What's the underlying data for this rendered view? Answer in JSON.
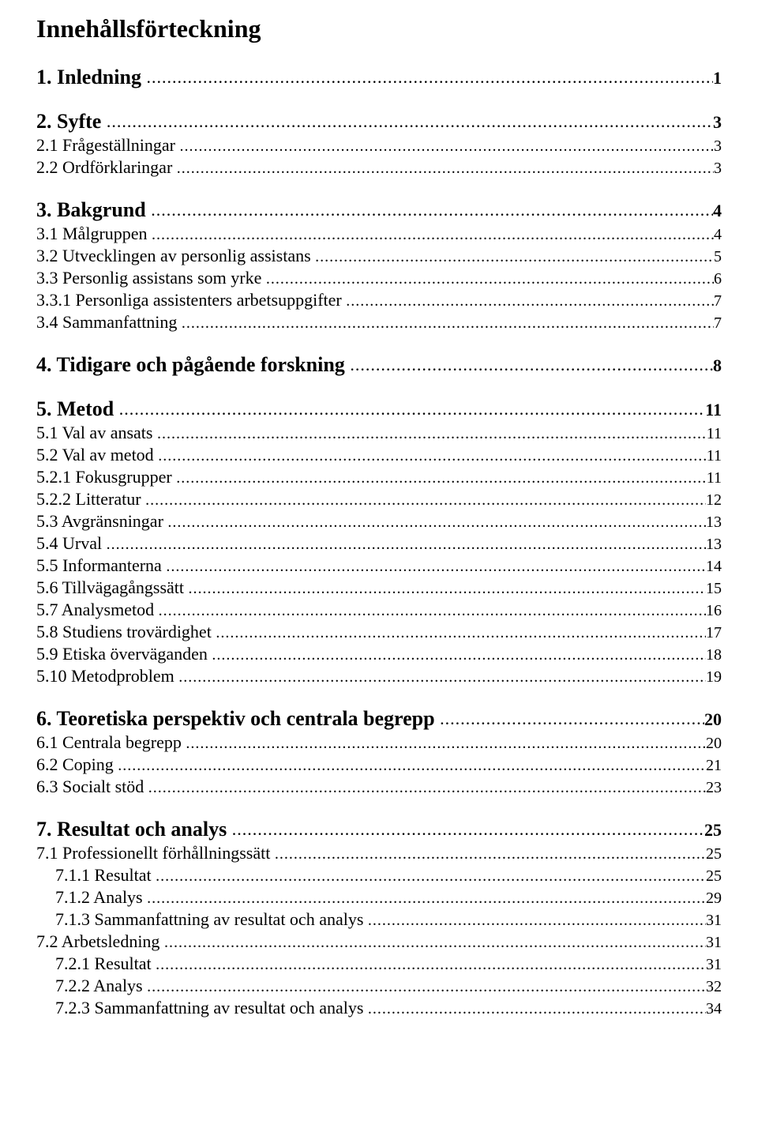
{
  "title": "Innehållsförteckning",
  "dot_fill": "........................................................................................................................................................................................................................................................................",
  "entries": [
    {
      "level": 1,
      "label": "1. Inledning",
      "page": "1"
    },
    {
      "level": 1,
      "label": "2. Syfte",
      "page": "3"
    },
    {
      "level": 2,
      "label": "2.1 Frågeställningar",
      "page": "3"
    },
    {
      "level": 2,
      "label": "2.2 Ordförklaringar",
      "page": "3"
    },
    {
      "level": 1,
      "label": "3. Bakgrund",
      "page": "4"
    },
    {
      "level": 2,
      "label": "3.1 Målgruppen",
      "page": "4"
    },
    {
      "level": 2,
      "label": "3.2 Utvecklingen av personlig assistans",
      "page": "5"
    },
    {
      "level": 2,
      "label": "3.3 Personlig assistans som yrke",
      "page": "6"
    },
    {
      "level": 2,
      "label": "3.3.1 Personliga assistenters arbetsuppgifter",
      "page": "7"
    },
    {
      "level": 2,
      "label": "3.4 Sammanfattning",
      "page": "7"
    },
    {
      "level": 1,
      "label": "4. Tidigare och pågående forskning",
      "page": "8"
    },
    {
      "level": 1,
      "label": "5. Metod",
      "page": "11"
    },
    {
      "level": 2,
      "label": "5.1 Val av ansats",
      "page": "11"
    },
    {
      "level": 2,
      "label": "5.2 Val av metod",
      "page": "11"
    },
    {
      "level": 2,
      "label": "5.2.1 Fokusgrupper",
      "page": "11"
    },
    {
      "level": 2,
      "label": "5.2.2 Litteratur",
      "page": "12"
    },
    {
      "level": 2,
      "label": "5.3 Avgränsningar",
      "page": "13"
    },
    {
      "level": 2,
      "label": "5.4 Urval",
      "page": "13"
    },
    {
      "level": 2,
      "label": "5.5 Informanterna",
      "page": "14"
    },
    {
      "level": 2,
      "label": "5.6 Tillvägagångssätt",
      "page": "15"
    },
    {
      "level": 2,
      "label": "5.7 Analysmetod",
      "page": "16"
    },
    {
      "level": 2,
      "label": "5.8 Studiens trovärdighet",
      "page": "17"
    },
    {
      "level": 2,
      "label": "5.9 Etiska överväganden",
      "page": "18"
    },
    {
      "level": 2,
      "label": "5.10 Metodproblem",
      "page": "19"
    },
    {
      "level": 1,
      "label": "6. Teoretiska perspektiv och centrala begrepp",
      "page": "20"
    },
    {
      "level": 2,
      "label": "6.1 Centrala begrepp",
      "page": "20"
    },
    {
      "level": 2,
      "label": "6.2 Coping",
      "page": "21"
    },
    {
      "level": 2,
      "label": "6.3 Socialt stöd",
      "page": "23"
    },
    {
      "level": 1,
      "label": "7. Resultat och analys",
      "page": "25"
    },
    {
      "level": 2,
      "label": "7.1 Professionellt förhållningssätt",
      "page": "25"
    },
    {
      "level": 3,
      "label": "7.1.1 Resultat",
      "page": "25"
    },
    {
      "level": 3,
      "label": "7.1.2 Analys",
      "page": "29"
    },
    {
      "level": 3,
      "label": "7.1.3 Sammanfattning av resultat och analys",
      "page": "31"
    },
    {
      "level": 2,
      "label": "7.2 Arbetsledning",
      "page": "31"
    },
    {
      "level": 3,
      "label": "7.2.1 Resultat",
      "page": "31"
    },
    {
      "level": 3,
      "label": "7.2.2 Analys",
      "page": "32"
    },
    {
      "level": 3,
      "label": "7.2.3 Sammanfattning av resultat och analys",
      "page": "34"
    }
  ]
}
